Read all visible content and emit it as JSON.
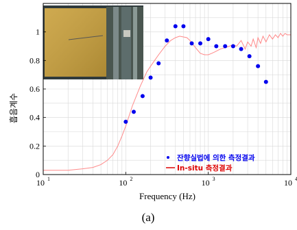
{
  "chart_data": {
    "type": "scatter",
    "xscale": "log",
    "xlim": [
      10,
      10000
    ],
    "ylim": [
      0,
      1.2
    ],
    "xlabel": "Frequency (Hz)",
    "ylabel": "흡음계수",
    "caption": "(a)",
    "x_ticks": [
      {
        "value": 10,
        "base": "10",
        "exp": "1"
      },
      {
        "value": 100,
        "base": "10",
        "exp": "2"
      },
      {
        "value": 1000,
        "base": "10",
        "exp": "3"
      },
      {
        "value": 10000,
        "base": "10",
        "exp": "4"
      }
    ],
    "y_ticks": [
      0,
      0.2,
      0.4,
      0.6,
      0.8,
      1
    ],
    "grid": true,
    "legend_position": "bottom-right",
    "series": [
      {
        "name": "잔향실법에 의한 측정결과",
        "kind": "points",
        "color": "#0000ee",
        "x": [
          100,
          125,
          160,
          200,
          250,
          315,
          400,
          500,
          630,
          800,
          1000,
          1250,
          1600,
          2000,
          2500,
          3150,
          4000,
          5000
        ],
        "y": [
          0.37,
          0.44,
          0.55,
          0.68,
          0.78,
          0.94,
          1.04,
          1.04,
          0.92,
          0.92,
          0.95,
          0.9,
          0.9,
          0.9,
          0.88,
          0.83,
          0.76,
          0.65
        ]
      },
      {
        "name": "In-situ 측정결과",
        "kind": "line",
        "color": "#ff8888",
        "legend_color": "#dd0000",
        "x": [
          10,
          20,
          30,
          40,
          50,
          60,
          70,
          80,
          90,
          100,
          120,
          150,
          180,
          200,
          250,
          300,
          350,
          400,
          450,
          500,
          550,
          600,
          700,
          800,
          900,
          1000,
          1100,
          1200,
          1400,
          1600,
          1800,
          2000,
          2200,
          2500,
          2800,
          3000,
          3300,
          3500,
          3800,
          4000,
          4300,
          4600,
          5000,
          5500,
          6000,
          6500,
          7000,
          7500,
          8000,
          8500,
          9000,
          10000
        ],
        "y": [
          0.03,
          0.03,
          0.04,
          0.05,
          0.07,
          0.1,
          0.14,
          0.2,
          0.27,
          0.34,
          0.48,
          0.62,
          0.72,
          0.76,
          0.84,
          0.9,
          0.94,
          0.96,
          0.97,
          0.965,
          0.96,
          0.94,
          0.89,
          0.85,
          0.84,
          0.84,
          0.85,
          0.86,
          0.88,
          0.89,
          0.9,
          0.91,
          0.9,
          0.94,
          0.88,
          0.93,
          0.9,
          0.95,
          0.89,
          0.96,
          0.92,
          0.97,
          0.93,
          0.98,
          0.95,
          0.98,
          0.96,
          0.99,
          0.97,
          0.99,
          0.98,
          0.98
        ]
      }
    ],
    "inset_image": {
      "description_name": "photo-inset"
    }
  }
}
